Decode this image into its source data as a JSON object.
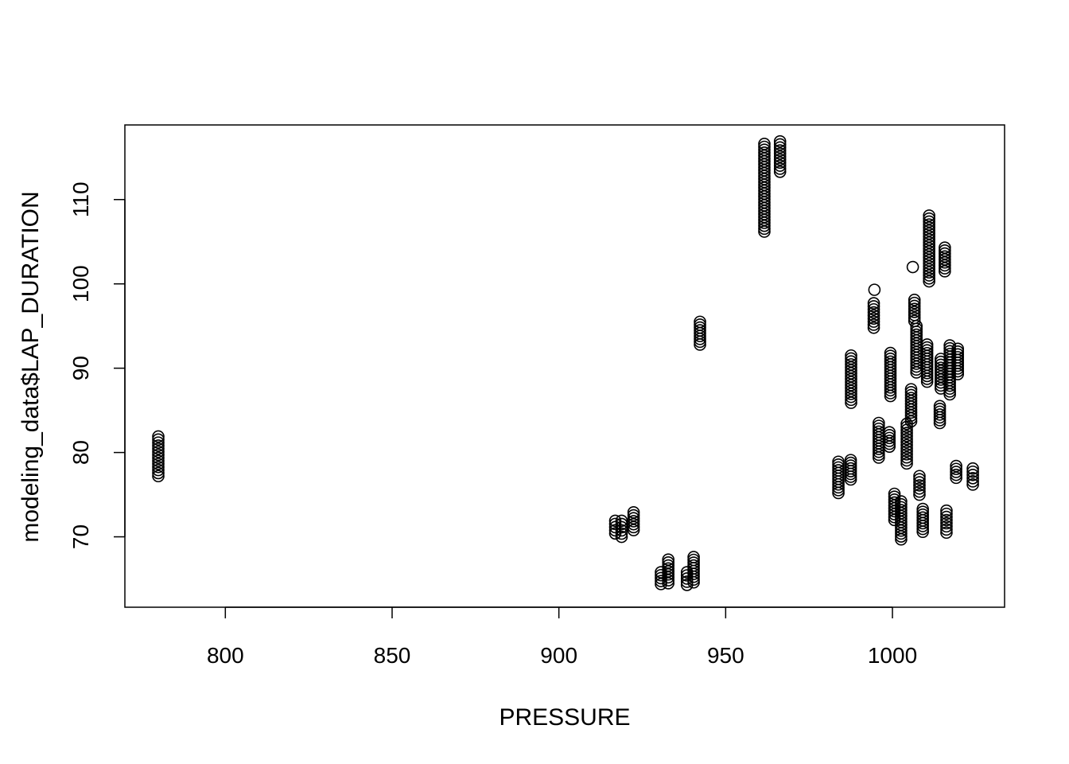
{
  "chart_data": {
    "type": "scatter",
    "title": "",
    "xlabel": "PRESSURE",
    "ylabel": "modeling_data$LAP_DURATION",
    "xlim": [
      769.88,
      1033.62
    ],
    "ylim": [
      61.65,
      118.85
    ],
    "xticks": [
      800,
      850,
      900,
      950,
      1000
    ],
    "yticks": [
      70,
      80,
      90,
      100,
      110
    ],
    "grid": false,
    "legend": "none",
    "marker": "open-circle",
    "color": "#000000",
    "clusters": [
      {
        "x": 779.9,
        "y_min": 77.2,
        "y_max": 81.9
      },
      {
        "x": 916.9,
        "y_min": 70.4,
        "y_max": 71.9
      },
      {
        "x": 918.8,
        "y_min": 70.0,
        "y_max": 71.9
      },
      {
        "x": 922.4,
        "y_min": 70.8,
        "y_max": 72.9
      },
      {
        "x": 930.6,
        "y_min": 64.4,
        "y_max": 65.8
      },
      {
        "x": 932.8,
        "y_min": 64.5,
        "y_max": 67.3
      },
      {
        "x": 938.4,
        "y_min": 64.3,
        "y_max": 65.8
      },
      {
        "x": 940.4,
        "y_min": 64.6,
        "y_max": 67.6
      },
      {
        "x": 942.3,
        "y_min": 92.8,
        "y_max": 95.5
      },
      {
        "x": 961.6,
        "y_min": 106.2,
        "y_max": 116.6
      },
      {
        "x": 966.3,
        "y_min": 113.3,
        "y_max": 116.9
      },
      {
        "x": 983.8,
        "y_min": 75.2,
        "y_max": 78.9
      },
      {
        "x": 987.5,
        "y_min": 76.8,
        "y_max": 79.1
      },
      {
        "x": 987.6,
        "y_min": 85.9,
        "y_max": 91.5
      },
      {
        "x": 994.4,
        "y_min": 94.8,
        "y_max": 97.7
      },
      {
        "x": 994.6,
        "y_min": 99.3,
        "y_max": 99.3
      },
      {
        "x": 995.9,
        "y_min": 79.4,
        "y_max": 83.5
      },
      {
        "x": 999.1,
        "y_min": 80.7,
        "y_max": 82.4
      },
      {
        "x": 999.4,
        "y_min": 86.7,
        "y_max": 91.8
      },
      {
        "x": 1000.6,
        "y_min": 72.0,
        "y_max": 75.1
      },
      {
        "x": 1002.6,
        "y_min": 69.7,
        "y_max": 74.2
      },
      {
        "x": 1004.3,
        "y_min": 78.7,
        "y_max": 83.4
      },
      {
        "x": 1005.6,
        "y_min": 83.7,
        "y_max": 87.5
      },
      {
        "x": 1006.1,
        "y_min": 102.0,
        "y_max": 102.0
      },
      {
        "x": 1006.6,
        "y_min": 95.6,
        "y_max": 98.1
      },
      {
        "x": 1007.2,
        "y_min": 89.5,
        "y_max": 95.0
      },
      {
        "x": 1008.1,
        "y_min": 75.0,
        "y_max": 77.2
      },
      {
        "x": 1009.1,
        "y_min": 70.6,
        "y_max": 73.3
      },
      {
        "x": 1010.4,
        "y_min": 88.4,
        "y_max": 92.8
      },
      {
        "x": 1011.0,
        "y_min": 100.3,
        "y_max": 108.1
      },
      {
        "x": 1014.2,
        "y_min": 83.5,
        "y_max": 85.5
      },
      {
        "x": 1014.5,
        "y_min": 87.6,
        "y_max": 91.1
      },
      {
        "x": 1015.7,
        "y_min": 101.5,
        "y_max": 104.3
      },
      {
        "x": 1016.2,
        "y_min": 70.5,
        "y_max": 73.1
      },
      {
        "x": 1017.2,
        "y_min": 86.9,
        "y_max": 92.7
      },
      {
        "x": 1019.1,
        "y_min": 77.0,
        "y_max": 78.4
      },
      {
        "x": 1019.6,
        "y_min": 89.3,
        "y_max": 92.3
      },
      {
        "x": 1024.1,
        "y_min": 76.2,
        "y_max": 78.1
      }
    ]
  }
}
